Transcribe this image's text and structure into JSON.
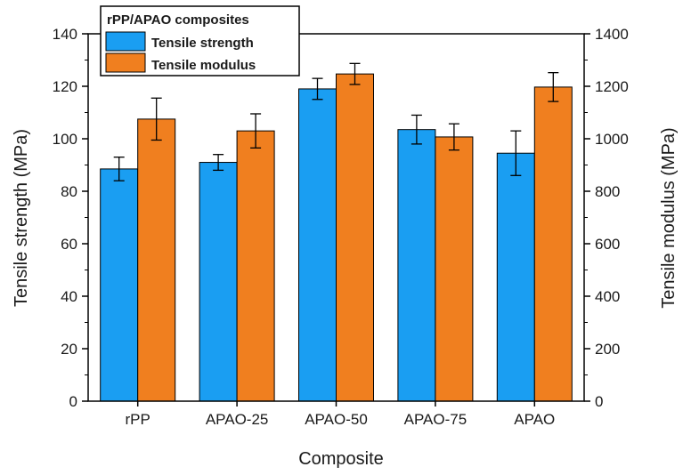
{
  "chart_data": {
    "type": "bar",
    "categories": [
      "rPP",
      "APAO-25",
      "APAO-50",
      "APAO-75",
      "APAO"
    ],
    "xlabel": "Composite",
    "legend_title": "rPP/APAO composites",
    "legend_position": "top-left",
    "y_left": {
      "label": "Tensile strength (MPa)",
      "lim": [
        0,
        140
      ],
      "ticks": [
        0,
        20,
        40,
        60,
        80,
        100,
        120,
        140
      ]
    },
    "y_right": {
      "label": "Tensile modulus (MPa)",
      "lim": [
        0,
        1400
      ],
      "ticks": [
        0,
        200,
        400,
        600,
        800,
        1000,
        1200,
        1400
      ]
    },
    "series": [
      {
        "name": "Tensile strength",
        "axis": "left",
        "color": "#1a9ef2",
        "values": [
          88.5,
          91.0,
          119.0,
          103.5,
          94.5
        ],
        "errors": [
          4.5,
          3.0,
          4.0,
          5.5,
          8.5
        ]
      },
      {
        "name": "Tensile modulus",
        "axis": "right",
        "color": "#f07f1f",
        "values": [
          1075,
          1030,
          1247,
          1007,
          1197
        ],
        "errors": [
          80,
          65,
          40,
          50,
          55
        ]
      }
    ]
  }
}
